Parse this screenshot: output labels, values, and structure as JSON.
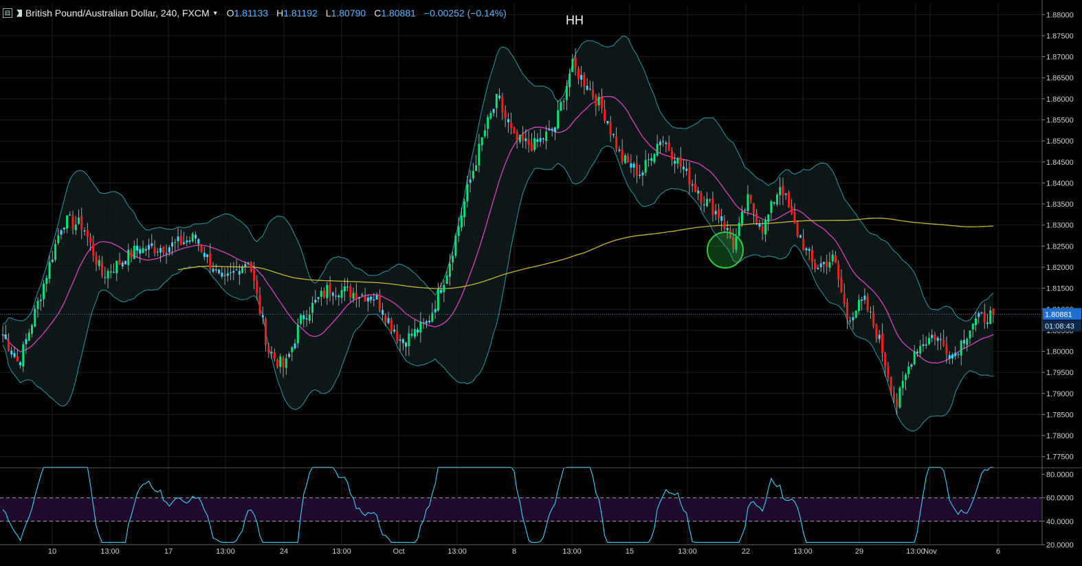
{
  "header": {
    "symbol": "British Pound/Australian Dollar, 240, FXCM",
    "open_label": "O",
    "open": "1.81133",
    "high_label": "H",
    "high": "1.81192",
    "low_label": "L",
    "low": "1.80790",
    "close_label": "C",
    "close": "1.80881",
    "change": "−0.00252 (−0.14%)"
  },
  "price_axis": {
    "ticks": [
      "1.88000",
      "1.87500",
      "1.87000",
      "1.86500",
      "1.86000",
      "1.85500",
      "1.85000",
      "1.84500",
      "1.84000",
      "1.83500",
      "1.83000",
      "1.82500",
      "1.82000",
      "1.81500",
      "1.81000",
      "1.80500",
      "1.80000",
      "1.79500",
      "1.79000",
      "1.78500",
      "1.78000",
      "1.77500"
    ],
    "last_price": "1.80881",
    "countdown": "01:08:43"
  },
  "rsi_axis": {
    "ticks": [
      "80.0000",
      "60.0000",
      "40.0000",
      "20.0000"
    ]
  },
  "time_axis": {
    "ticks": [
      "10",
      "13:00",
      "17",
      "13:00",
      "24",
      "13:00",
      "Oct",
      "13:00",
      "8",
      "13:00",
      "15",
      "13:00",
      "22",
      "13:00",
      "29",
      "13:00",
      "Nov",
      "6"
    ]
  },
  "annotations": {
    "hh_label": "HH"
  },
  "colors": {
    "background": "#000000",
    "grid": "#1e1e1e",
    "bull": "#00e676",
    "bear": "#ff1a1a",
    "doji": "#39d5ff",
    "ma_fast": "#e040c8",
    "ma_slow": "#c8b82e",
    "bands": "#2c9aa8",
    "rsi": "#39d5ff",
    "rsi_zone": "#1f0a2e",
    "highlight": "#2ecc40"
  },
  "chart_data": [
    {
      "type": "candlestick",
      "title": "British Pound/Australian Dollar, 240, FXCM",
      "ylim": [
        1.7725,
        1.8825
      ],
      "current_price": 1.80881,
      "annotations": [
        {
          "text": "HH",
          "at_price": 1.8728
        }
      ],
      "ohlc_anchors": [
        {
          "x": 0,
          "close": 1.804
        },
        {
          "x": 12,
          "close": 1.797
        },
        {
          "x": 25,
          "close": 1.81
        },
        {
          "x": 45,
          "close": 1.831
        },
        {
          "x": 60,
          "close": 1.83
        },
        {
          "x": 75,
          "close": 1.818
        },
        {
          "x": 100,
          "close": 1.824
        },
        {
          "x": 125,
          "close": 1.825
        },
        {
          "x": 145,
          "close": 1.827
        },
        {
          "x": 165,
          "close": 1.816
        },
        {
          "x": 185,
          "close": 1.822
        },
        {
          "x": 200,
          "close": 1.8
        },
        {
          "x": 212,
          "close": 1.796
        },
        {
          "x": 225,
          "close": 1.808
        },
        {
          "x": 245,
          "close": 1.815
        },
        {
          "x": 262,
          "close": 1.814
        },
        {
          "x": 280,
          "close": 1.813
        },
        {
          "x": 300,
          "close": 1.802
        },
        {
          "x": 320,
          "close": 1.807
        },
        {
          "x": 335,
          "close": 1.82
        },
        {
          "x": 350,
          "close": 1.839
        },
        {
          "x": 362,
          "close": 1.852
        },
        {
          "x": 372,
          "close": 1.86
        },
        {
          "x": 385,
          "close": 1.85
        },
        {
          "x": 400,
          "close": 1.849
        },
        {
          "x": 415,
          "close": 1.853
        },
        {
          "x": 428,
          "close": 1.868
        },
        {
          "x": 440,
          "close": 1.863
        },
        {
          "x": 452,
          "close": 1.857
        },
        {
          "x": 465,
          "close": 1.846
        },
        {
          "x": 480,
          "close": 1.842
        },
        {
          "x": 495,
          "close": 1.851
        },
        {
          "x": 510,
          "close": 1.844
        },
        {
          "x": 525,
          "close": 1.837
        },
        {
          "x": 540,
          "close": 1.832
        },
        {
          "x": 550,
          "close": 1.825
        },
        {
          "x": 560,
          "close": 1.836
        },
        {
          "x": 572,
          "close": 1.829
        },
        {
          "x": 585,
          "close": 1.84
        },
        {
          "x": 595,
          "close": 1.83
        },
        {
          "x": 610,
          "close": 1.82
        },
        {
          "x": 625,
          "close": 1.822
        },
        {
          "x": 635,
          "close": 1.808
        },
        {
          "x": 648,
          "close": 1.812
        },
        {
          "x": 660,
          "close": 1.802
        },
        {
          "x": 672,
          "close": 1.787
        },
        {
          "x": 685,
          "close": 1.8
        },
        {
          "x": 700,
          "close": 1.804
        },
        {
          "x": 715,
          "close": 1.799
        },
        {
          "x": 730,
          "close": 1.807
        },
        {
          "x": 745,
          "close": 1.8088
        }
      ]
    },
    {
      "type": "line",
      "name": "",
      "ylim": [
        20,
        85
      ],
      "reference_lines": [
        60,
        40
      ]
    }
  ]
}
